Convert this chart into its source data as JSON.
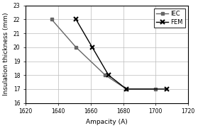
{
  "IEC_x": [
    1636,
    1651,
    1669,
    1682,
    1700
  ],
  "IEC_y": [
    22,
    20,
    18,
    17,
    17
  ],
  "FEM_x": [
    1651,
    1661,
    1671,
    1682,
    1707
  ],
  "FEM_y": [
    22,
    20,
    18,
    17,
    17
  ],
  "xlim": [
    1620,
    1720
  ],
  "ylim": [
    16,
    23
  ],
  "xticks": [
    1620,
    1640,
    1660,
    1680,
    1700,
    1720
  ],
  "yticks": [
    16,
    17,
    18,
    19,
    20,
    21,
    22,
    23
  ],
  "xlabel": "Ampacity (A)",
  "ylabel": "Insulation thickness (mm)",
  "legend_labels": [
    "IEC",
    "FEM"
  ],
  "line_color_IEC": "#666666",
  "line_color_FEM": "#000000",
  "marker_IEC": "s",
  "marker_FEM": "x",
  "background_color": "#ffffff",
  "grid_color": "#bbbbbb"
}
